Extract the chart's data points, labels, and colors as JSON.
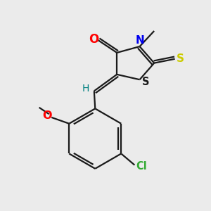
{
  "background_color": "#ebebeb",
  "bond_color": "#1a1a1a",
  "atom_colors": {
    "O": "#ff0000",
    "N": "#0000ee",
    "S_thioxo": "#cccc00",
    "S_ring": "#1a1a1a",
    "Cl": "#33aa33",
    "O_methoxy": "#ff0000",
    "H": "#008080",
    "C": "#1a1a1a"
  },
  "figsize": [
    3.0,
    3.0
  ],
  "dpi": 100
}
